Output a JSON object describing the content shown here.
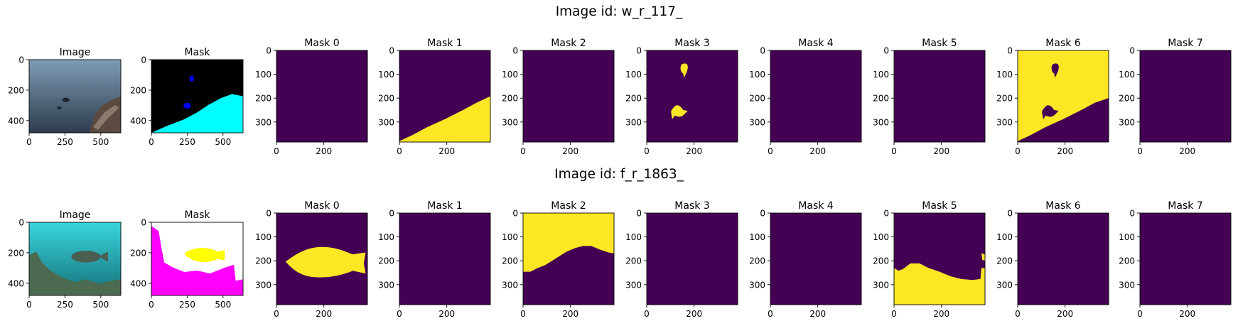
{
  "colors": {
    "mask_off": "#440154",
    "mask_on": "#fde725",
    "mask_rgb_bg": "#000000",
    "mask_rgb_cyan": "#00ffff",
    "mask_rgb_blue": "#0000ff",
    "mask_rgb_magenta": "#ff00ff",
    "mask_rgb_yellow": "#ffff00",
    "mask_rgb_white": "#ffffff",
    "photo1_top": "#6d8aa3",
    "photo1_bottom": "#2a3a4a",
    "photo2_top": "#33d1d9",
    "photo2_bottom": "#19707a"
  },
  "chart_data": [
    {
      "type": "image-grid",
      "suptitle": "Image id: w_r_117_",
      "panels": [
        {
          "title": "Image",
          "kind": "photo",
          "xticks": [
            "0",
            "250",
            "500"
          ],
          "yticks": [
            "0",
            "200",
            "400"
          ],
          "x_range": [
            0,
            640
          ],
          "y_range": [
            0,
            480
          ]
        },
        {
          "title": "Mask",
          "kind": "rgb_mask",
          "xticks": [
            "0",
            "250",
            "500"
          ],
          "yticks": [
            "0",
            "200",
            "400"
          ],
          "x_range": [
            0,
            640
          ],
          "y_range": [
            0,
            480
          ]
        },
        {
          "title": "Mask 0",
          "kind": "mask",
          "content": "empty",
          "xticks": [
            "0",
            "200"
          ],
          "yticks": [
            "0",
            "100",
            "200",
            "300"
          ],
          "x_range": [
            0,
            384
          ],
          "y_range": [
            0,
            384
          ]
        },
        {
          "title": "Mask 1",
          "kind": "mask",
          "content": "seabed",
          "xticks": [
            "0",
            "200"
          ],
          "yticks": [
            "0",
            "100",
            "200",
            "300"
          ],
          "x_range": [
            0,
            384
          ],
          "y_range": [
            0,
            384
          ]
        },
        {
          "title": "Mask 2",
          "kind": "mask",
          "content": "empty",
          "xticks": [
            "0",
            "200"
          ],
          "yticks": [
            "0",
            "100",
            "200",
            "300"
          ],
          "x_range": [
            0,
            384
          ],
          "y_range": [
            0,
            384
          ]
        },
        {
          "title": "Mask 3",
          "kind": "mask",
          "content": "two fish",
          "xticks": [
            "0",
            "200"
          ],
          "yticks": [
            "0",
            "100",
            "200",
            "300"
          ],
          "x_range": [
            0,
            384
          ],
          "y_range": [
            0,
            384
          ]
        },
        {
          "title": "Mask 4",
          "kind": "mask",
          "content": "empty",
          "xticks": [
            "0",
            "200"
          ],
          "yticks": [
            "0",
            "100",
            "200",
            "300"
          ],
          "x_range": [
            0,
            384
          ],
          "y_range": [
            0,
            384
          ]
        },
        {
          "title": "Mask 5",
          "kind": "mask",
          "content": "empty",
          "xticks": [
            "0",
            "200"
          ],
          "yticks": [
            "0",
            "100",
            "200",
            "300"
          ],
          "x_range": [
            0,
            384
          ],
          "y_range": [
            0,
            384
          ]
        },
        {
          "title": "Mask 6",
          "kind": "mask",
          "content": "water with fish holes",
          "xticks": [
            "0",
            "200"
          ],
          "yticks": [
            "0",
            "100",
            "200",
            "300"
          ],
          "x_range": [
            0,
            384
          ],
          "y_range": [
            0,
            384
          ]
        },
        {
          "title": "Mask 7",
          "kind": "mask",
          "content": "empty",
          "xticks": [
            "0",
            "200"
          ],
          "yticks": [
            "0",
            "100",
            "200",
            "300"
          ],
          "x_range": [
            0,
            384
          ],
          "y_range": [
            0,
            384
          ]
        }
      ]
    },
    {
      "type": "image-grid",
      "suptitle": "Image id: f_r_1863_",
      "panels": [
        {
          "title": "Image",
          "kind": "photo",
          "xticks": [
            "0",
            "250",
            "500"
          ],
          "yticks": [
            "0",
            "200",
            "400"
          ],
          "x_range": [
            0,
            640
          ],
          "y_range": [
            0,
            480
          ]
        },
        {
          "title": "Mask",
          "kind": "rgb_mask",
          "xticks": [
            "0",
            "250",
            "500"
          ],
          "yticks": [
            "0",
            "200",
            "400"
          ],
          "x_range": [
            0,
            640
          ],
          "y_range": [
            0,
            480
          ]
        },
        {
          "title": "Mask 0",
          "kind": "mask",
          "content": "fish",
          "xticks": [
            "0",
            "200"
          ],
          "yticks": [
            "0",
            "100",
            "200",
            "300"
          ],
          "x_range": [
            0,
            384
          ],
          "y_range": [
            0,
            384
          ]
        },
        {
          "title": "Mask 1",
          "kind": "mask",
          "content": "empty",
          "xticks": [
            "0",
            "200"
          ],
          "yticks": [
            "0",
            "100",
            "200",
            "300"
          ],
          "x_range": [
            0,
            384
          ],
          "y_range": [
            0,
            384
          ]
        },
        {
          "title": "Mask 2",
          "kind": "mask",
          "content": "water",
          "xticks": [
            "0",
            "200"
          ],
          "yticks": [
            "0",
            "100",
            "200",
            "300"
          ],
          "x_range": [
            0,
            384
          ],
          "y_range": [
            0,
            384
          ]
        },
        {
          "title": "Mask 3",
          "kind": "mask",
          "content": "empty",
          "xticks": [
            "0",
            "200"
          ],
          "yticks": [
            "0",
            "100",
            "200",
            "300"
          ],
          "x_range": [
            0,
            384
          ],
          "y_range": [
            0,
            384
          ]
        },
        {
          "title": "Mask 4",
          "kind": "mask",
          "content": "empty",
          "xticks": [
            "0",
            "200"
          ],
          "yticks": [
            "0",
            "100",
            "200",
            "300"
          ],
          "x_range": [
            0,
            384
          ],
          "y_range": [
            0,
            384
          ]
        },
        {
          "title": "Mask 5",
          "kind": "mask",
          "content": "reef",
          "xticks": [
            "0",
            "200"
          ],
          "yticks": [
            "0",
            "100",
            "200",
            "300"
          ],
          "x_range": [
            0,
            384
          ],
          "y_range": [
            0,
            384
          ]
        },
        {
          "title": "Mask 6",
          "kind": "mask",
          "content": "empty",
          "xticks": [
            "0",
            "200"
          ],
          "yticks": [
            "0",
            "100",
            "200",
            "300"
          ],
          "x_range": [
            0,
            384
          ],
          "y_range": [
            0,
            384
          ]
        },
        {
          "title": "Mask 7",
          "kind": "mask",
          "content": "empty",
          "xticks": [
            "0",
            "200"
          ],
          "yticks": [
            "0",
            "100",
            "200",
            "300"
          ],
          "x_range": [
            0,
            384
          ],
          "y_range": [
            0,
            384
          ]
        }
      ]
    }
  ]
}
